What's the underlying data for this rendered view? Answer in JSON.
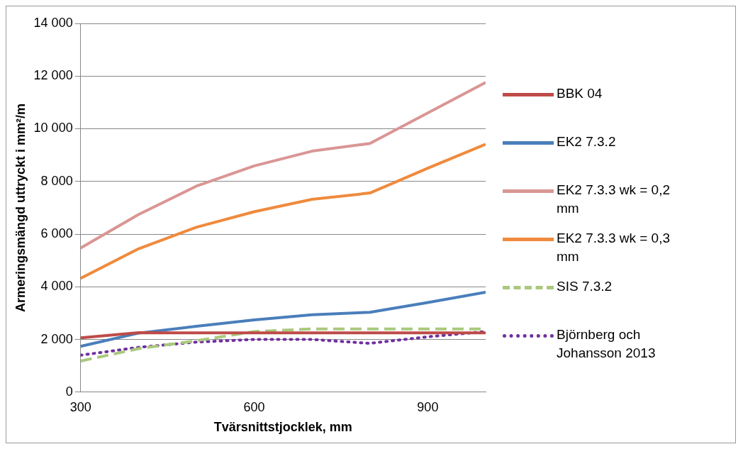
{
  "chart_data": {
    "type": "line",
    "xlabel": "Tvärsnittstjocklek, mm",
    "ylabel": "Armeringsmängd uttryckt i mm²/m",
    "x": [
      300,
      400,
      500,
      600,
      700,
      800,
      900,
      1000
    ],
    "xlim": [
      300,
      1000
    ],
    "xticks": [
      300,
      600,
      900
    ],
    "ylim": [
      0,
      14000
    ],
    "yticks": [
      0,
      {
        "value": 2000,
        "label": "2 000"
      },
      {
        "value": 4000,
        "label": "4 000"
      },
      {
        "value": 6000,
        "label": "6 000"
      },
      {
        "value": 8000,
        "label": "8 000"
      },
      {
        "value": 10000,
        "label": "10 000"
      },
      {
        "value": 12000,
        "label": "12 000"
      },
      {
        "value": 14000,
        "label": "14 000"
      }
    ],
    "grid": "y",
    "legend": "right",
    "marker": "none",
    "series": [
      {
        "name": "BBK 04",
        "color": "#be4b48",
        "line_style": "solid",
        "values": [
          2060,
          2260,
          2250,
          2250,
          2250,
          2250,
          2250,
          2250
        ]
      },
      {
        "name": "EK2 7.3.2",
        "color": "#4a7ebb",
        "line_style": "solid",
        "values": [
          1740,
          2240,
          2500,
          2740,
          2940,
          3030,
          3400,
          3790
        ]
      },
      {
        "name": "EK2 7.3.3 wk = 0,2 mm",
        "color": "#d99694",
        "line_style": "solid",
        "values": [
          5470,
          6740,
          7820,
          8590,
          9150,
          9440,
          10600,
          11760
        ]
      },
      {
        "name": "EK2 7.3.3 wk = 0,3 mm",
        "color": "#f08a3c",
        "line_style": "solid",
        "values": [
          4320,
          5440,
          6260,
          6850,
          7320,
          7560,
          8500,
          9410
        ]
      },
      {
        "name": "SIS 7.3.2",
        "color": "#a9c97d",
        "line_style": "dashed",
        "values": [
          1180,
          1650,
          1950,
          2300,
          2400,
          2400,
          2400,
          2400
        ]
      },
      {
        "name": "Björnberg och Johansson 2013",
        "color": "#7030a0",
        "line_style": "dotted",
        "values": [
          1400,
          1700,
          1900,
          2000,
          2000,
          1850,
          2100,
          2300
        ]
      }
    ]
  }
}
